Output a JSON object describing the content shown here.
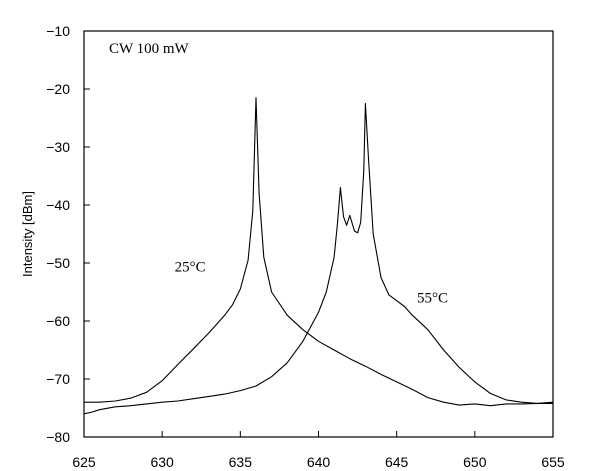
{
  "chart_data": {
    "type": "line",
    "title": "",
    "xlabel": "",
    "ylabel": "Intensity [dBm]",
    "xlim": [
      625,
      655
    ],
    "ylim": [
      -80,
      -10
    ],
    "xticks": [
      625,
      630,
      635,
      640,
      645,
      650,
      655
    ],
    "yticks": [
      -10,
      -20,
      -30,
      -40,
      -50,
      -60,
      -70,
      -80
    ],
    "xtick_labels": [
      "625",
      "630",
      "635",
      "640",
      "645",
      "650",
      "655"
    ],
    "ytick_labels": [
      "−10",
      "−20",
      "−30",
      "−40",
      "−50",
      "−60",
      "−70",
      "−80"
    ],
    "grid": false,
    "annotations": [
      {
        "text": "CW 100 mW",
        "x": 626.6,
        "y": -13.8
      },
      {
        "text": "25°C",
        "x": 630.8,
        "y": -51.5
      },
      {
        "text": "55°C",
        "x": 646.3,
        "y": -56.8
      }
    ],
    "series": [
      {
        "points": [
          [
            625.0,
            -74.0
          ],
          [
            626.0,
            -74.0
          ],
          [
            627.0,
            -73.8
          ],
          [
            628.0,
            -73.3
          ],
          [
            629.0,
            -72.3
          ],
          [
            630.0,
            -70.3
          ],
          [
            631.0,
            -67.5
          ],
          [
            632.0,
            -64.8
          ],
          [
            633.0,
            -62.0
          ],
          [
            634.0,
            -59.0
          ],
          [
            634.5,
            -57.2
          ],
          [
            635.0,
            -54.5
          ],
          [
            635.5,
            -49.5
          ],
          [
            635.8,
            -41.0
          ],
          [
            636.0,
            -21.5
          ],
          [
            636.2,
            -38.0
          ],
          [
            636.5,
            -49.0
          ],
          [
            637.0,
            -55.0
          ],
          [
            638.0,
            -59.0
          ],
          [
            639.0,
            -61.5
          ],
          [
            640.0,
            -63.5
          ],
          [
            641.0,
            -65.0
          ],
          [
            642.0,
            -66.5
          ],
          [
            643.0,
            -67.8
          ],
          [
            644.0,
            -69.2
          ],
          [
            645.0,
            -70.5
          ],
          [
            646.0,
            -71.8
          ],
          [
            647.0,
            -73.2
          ],
          [
            648.0,
            -74.0
          ],
          [
            649.0,
            -74.5
          ],
          [
            650.0,
            -74.3
          ],
          [
            651.0,
            -74.6
          ],
          [
            652.0,
            -74.3
          ],
          [
            653.0,
            -74.3
          ],
          [
            654.0,
            -74.2
          ],
          [
            655.0,
            -74.2
          ]
        ]
      },
      {
        "points": [
          [
            625.0,
            -76.0
          ],
          [
            625.5,
            -75.7
          ],
          [
            626.0,
            -75.3
          ],
          [
            627.0,
            -74.8
          ],
          [
            628.0,
            -74.6
          ],
          [
            629.0,
            -74.3
          ],
          [
            630.0,
            -74.0
          ],
          [
            631.0,
            -73.8
          ],
          [
            632.0,
            -73.4
          ],
          [
            633.0,
            -73.0
          ],
          [
            634.0,
            -72.6
          ],
          [
            635.0,
            -72.0
          ],
          [
            636.0,
            -71.2
          ],
          [
            637.0,
            -69.6
          ],
          [
            638.0,
            -67.2
          ],
          [
            639.0,
            -63.5
          ],
          [
            640.0,
            -58.5
          ],
          [
            640.5,
            -55.0
          ],
          [
            641.0,
            -49.0
          ],
          [
            641.2,
            -43.5
          ],
          [
            641.4,
            -37.0
          ],
          [
            641.6,
            -42.0
          ],
          [
            641.8,
            -43.5
          ],
          [
            642.0,
            -41.8
          ],
          [
            642.3,
            -44.5
          ],
          [
            642.5,
            -44.8
          ],
          [
            642.7,
            -43.0
          ],
          [
            642.9,
            -34.0
          ],
          [
            643.0,
            -22.5
          ],
          [
            643.2,
            -32.0
          ],
          [
            643.5,
            -45.0
          ],
          [
            644.0,
            -52.5
          ],
          [
            644.5,
            -55.5
          ],
          [
            645.0,
            -56.5
          ],
          [
            645.5,
            -57.5
          ],
          [
            646.0,
            -59.0
          ],
          [
            647.0,
            -61.5
          ],
          [
            648.0,
            -65.0
          ],
          [
            649.0,
            -68.0
          ],
          [
            650.0,
            -70.5
          ],
          [
            651.0,
            -72.5
          ],
          [
            652.0,
            -73.6
          ],
          [
            653.0,
            -74.0
          ],
          [
            654.0,
            -74.2
          ],
          [
            655.0,
            -74.0
          ]
        ]
      }
    ]
  }
}
